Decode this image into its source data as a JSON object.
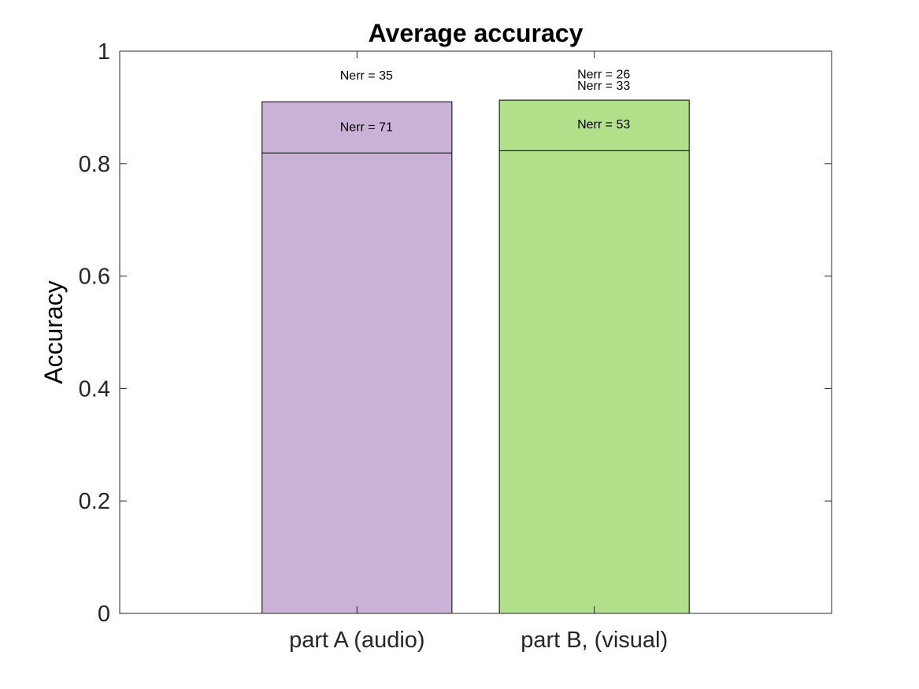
{
  "chart_data": {
    "type": "bar",
    "title": "Average accuracy",
    "xlabel": "",
    "ylabel": "Accuracy",
    "ylim": [
      0,
      1
    ],
    "yticks": [
      0,
      0.2,
      0.4,
      0.6,
      0.8,
      1
    ],
    "ytick_labels": [
      "0",
      "0.2",
      "0.4",
      "0.6",
      "0.8",
      "1"
    ],
    "grid": false,
    "categories": [
      "part A (audio)",
      "part B, (visual)"
    ],
    "bars": [
      {
        "category": "part A (audio)",
        "value": 0.91,
        "inner_line": 0.819,
        "color": "#c9b2d6",
        "annotations": [
          {
            "text": "Nerr = 35",
            "y": 0.958
          },
          {
            "text": "Nerr = 71",
            "y": 0.866
          }
        ]
      },
      {
        "category": "part B, (visual)",
        "value": 0.913,
        "inner_line": 0.823,
        "color": "#b2df8a",
        "annotations": [
          {
            "text": "Nerr = 26",
            "y": 0.96
          },
          {
            "text": "Nerr = 33",
            "y": 0.94
          },
          {
            "text": "Nerr = 53",
            "y": 0.871
          }
        ]
      }
    ],
    "colors": {
      "axis": "#262626",
      "bar_edge": "#000000"
    }
  }
}
